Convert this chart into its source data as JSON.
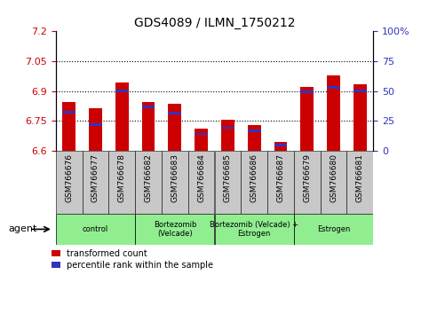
{
  "title": "GDS4089 / ILMN_1750212",
  "samples": [
    "GSM766676",
    "GSM766677",
    "GSM766678",
    "GSM766682",
    "GSM766683",
    "GSM766684",
    "GSM766685",
    "GSM766686",
    "GSM766687",
    "GSM766679",
    "GSM766680",
    "GSM766681"
  ],
  "red_values": [
    6.845,
    6.815,
    6.945,
    6.845,
    6.835,
    6.71,
    6.755,
    6.73,
    6.645,
    6.92,
    6.98,
    6.935
  ],
  "blue_values": [
    6.795,
    6.73,
    6.9,
    6.82,
    6.79,
    6.685,
    6.715,
    6.7,
    6.63,
    6.895,
    6.92,
    6.9
  ],
  "y_min": 6.6,
  "y_max": 7.2,
  "y_ticks": [
    6.6,
    6.75,
    6.9,
    7.05,
    7.2
  ],
  "right_y_ticks": [
    0,
    25,
    50,
    75,
    100
  ],
  "right_y_labels": [
    "0",
    "25",
    "50",
    "75",
    "100%"
  ],
  "groups": [
    {
      "label": "control",
      "col_indices": [
        0,
        1,
        2
      ]
    },
    {
      "label": "Bortezomib\n(Velcade)",
      "col_indices": [
        3,
        4,
        5
      ]
    },
    {
      "label": "Bortezomib (Velcade) +\nEstrogen",
      "col_indices": [
        6,
        7,
        8
      ]
    },
    {
      "label": "Estrogen",
      "col_indices": [
        9,
        10,
        11
      ]
    }
  ],
  "bar_width": 0.5,
  "red_color": "#CC0000",
  "blue_color": "#3333BB",
  "tick_color_left": "#CC0000",
  "tick_color_right": "#3333BB",
  "legend_red": "transformed count",
  "legend_blue": "percentile rank within the sample",
  "background_bar": "#C8C8C8",
  "background_group": "#90EE90",
  "blue_bar_height": 0.012
}
